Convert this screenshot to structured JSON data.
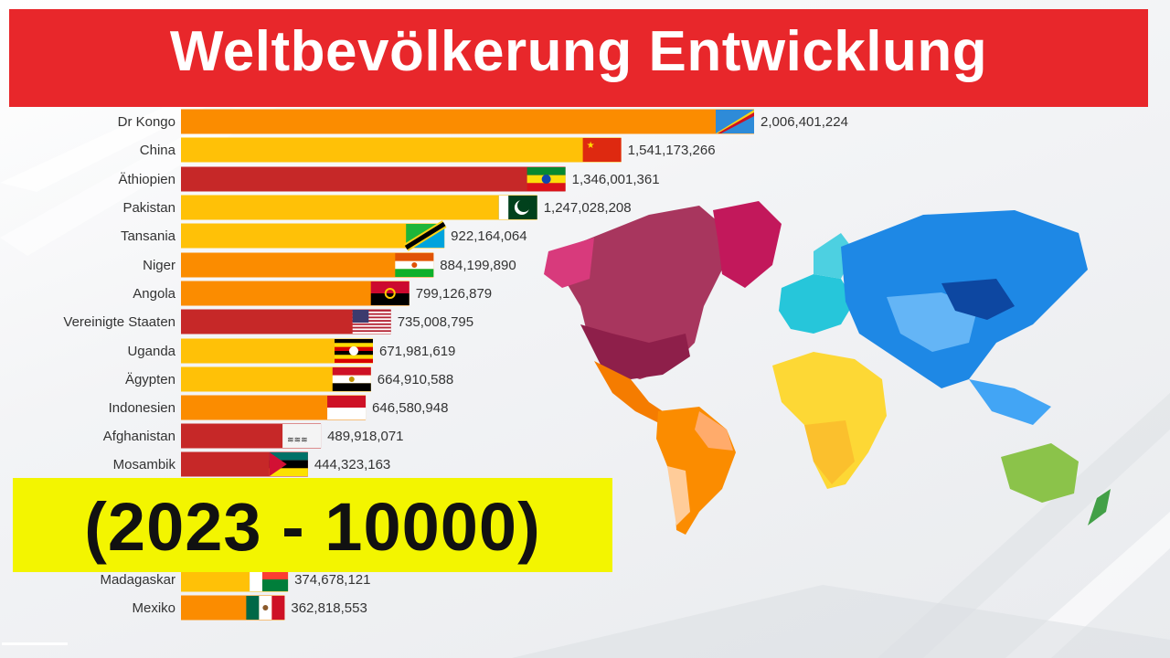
{
  "title": "Weltbevölkerung Entwicklung",
  "subtitle": "(2023 - 10000)",
  "colors": {
    "red": "#c62828",
    "orange": "#fb8c00",
    "yellow": "#ffc107",
    "title_bg": "#e8272b",
    "subtitle_bg": "#f3f500"
  },
  "chart_data": {
    "type": "bar",
    "orientation": "horizontal",
    "grid": false,
    "legend": "none",
    "xlim": [
      0,
      2200000000
    ],
    "categories": [
      "Dr Kongo",
      "China",
      "Äthiopien",
      "Pakistan",
      "Tansania",
      "Niger",
      "Angola",
      "Vereinigte Staaten",
      "Uganda",
      "Ägypten",
      "Indonesien",
      "Afghanistan",
      "Mosambik",
      "Madagaskar",
      "Mexiko"
    ],
    "values": [
      2006401224,
      1541173266,
      1346001361,
      1247028208,
      922164064,
      884199890,
      799126879,
      735008795,
      671981619,
      664910588,
      646580948,
      489918071,
      444323163,
      374678121,
      362818553
    ],
    "value_labels": [
      "2,006,401,224",
      "1,541,173,266",
      "1,346,001,361",
      "1,247,028,208",
      "922,164,064",
      "884,199,890",
      "799,126,879",
      "735,008,795",
      "671,981,619",
      "664,910,588",
      "646,580,948",
      "489,918,071",
      "444,323,163",
      "374,678,121",
      "362,818,553"
    ],
    "bar_colors": [
      "orange",
      "yellow",
      "red",
      "yellow",
      "yellow",
      "orange",
      "orange",
      "red",
      "yellow",
      "yellow",
      "orange",
      "red",
      "red",
      "yellow",
      "orange"
    ],
    "flags": [
      "flag-dr-kongo",
      "flag-china",
      "flag-aethiopien",
      "flag-pakistan",
      "flag-tansania",
      "flag-niger",
      "flag-angola",
      "flag-vereinigte-staaten",
      "flag-uganda",
      "flag-aegypten",
      "flag-indonesien",
      "flag-afghanistan",
      "flag-mosambik",
      "flag-madagaskar",
      "flag-mexiko"
    ]
  }
}
